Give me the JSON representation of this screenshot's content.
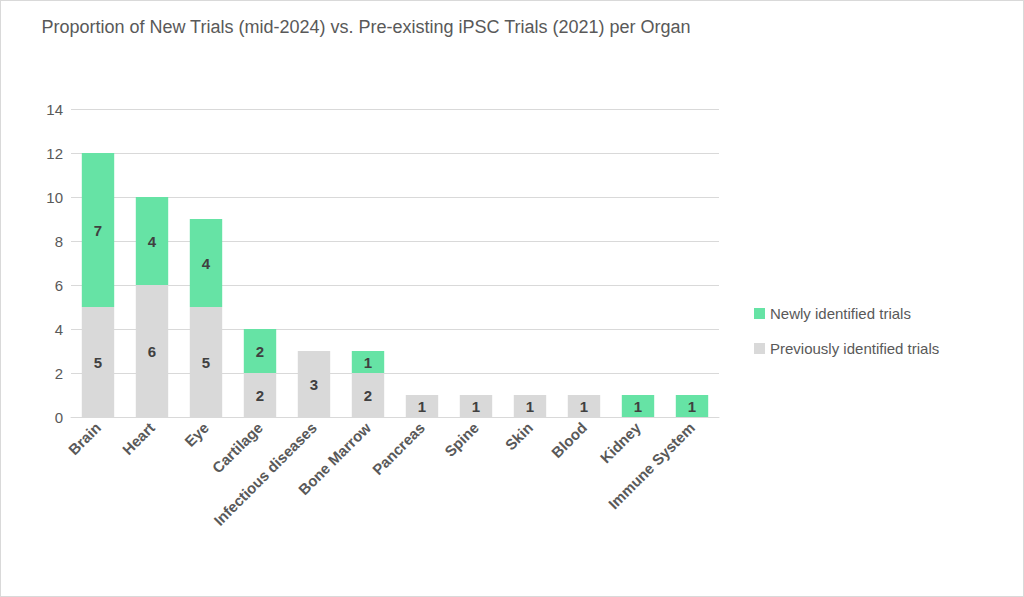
{
  "chart_data": {
    "type": "bar",
    "title": "Proportion of New Trials (mid-2024) vs. Pre-existing iPSC Trials (2021) per Organ",
    "categories": [
      "Brain",
      "Heart",
      "Eye",
      "Cartilage",
      "Infectious diseases",
      "Bone Marrow",
      "Pancreas",
      "Spine",
      "Skin",
      "Blood",
      "Kidney",
      "Immune System"
    ],
    "series": [
      {
        "name": "Previously identified trials",
        "color": "#d9d9d9",
        "values": [
          5,
          6,
          5,
          2,
          3,
          2,
          1,
          1,
          1,
          1,
          0,
          0
        ]
      },
      {
        "name": "Newly identified trials",
        "color": "#66e3a5",
        "values": [
          7,
          4,
          4,
          2,
          0,
          1,
          0,
          0,
          0,
          0,
          1,
          1
        ]
      }
    ],
    "stacked": true,
    "data_labels": true,
    "ylim": [
      0,
      14
    ],
    "yticks": [
      0,
      2,
      4,
      6,
      8,
      10,
      12,
      14
    ],
    "grid": true,
    "legend": "right"
  }
}
